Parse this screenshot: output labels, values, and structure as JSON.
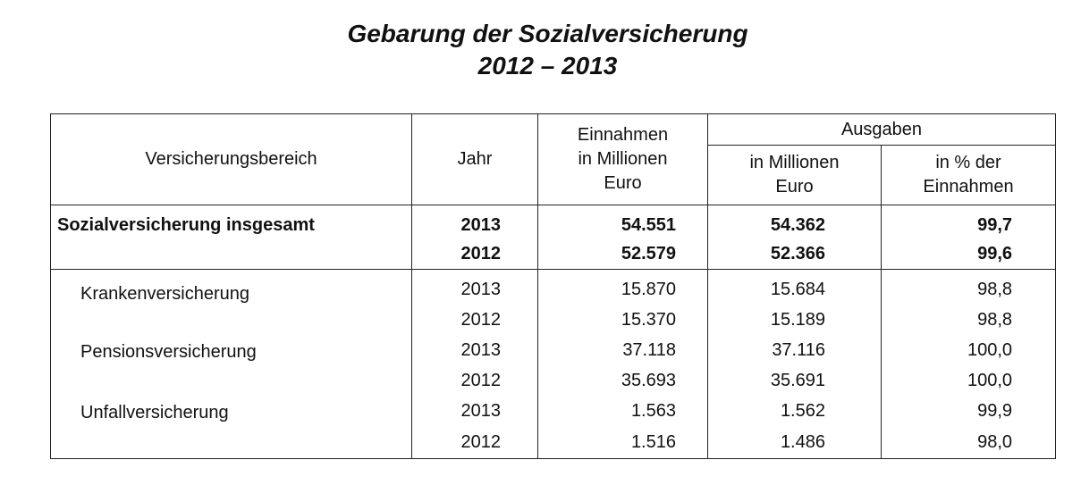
{
  "title": {
    "line1": "Gebarung der Sozialversicherung",
    "line2": "2012 – 2013"
  },
  "table": {
    "headers": {
      "area": "Versicherungsbereich",
      "year": "Jahr",
      "income_l1": "Einnahmen",
      "income_l2": "in Millionen",
      "income_l3": "Euro",
      "expenses": "Ausgaben",
      "exp_mio_l1": "in Millionen",
      "exp_mio_l2": "Euro",
      "exp_pct_l1": "in % der",
      "exp_pct_l2": "Einnahmen"
    },
    "total": {
      "label": "Sozialversicherung insgesamt",
      "rows": [
        {
          "year": "2013",
          "income": "54.551",
          "expenses": "54.362",
          "percent": "99,7"
        },
        {
          "year": "2012",
          "income": "52.579",
          "expenses": "52.366",
          "percent": "99,6"
        }
      ]
    },
    "groups": [
      {
        "label": "Krankenversicherung",
        "rows": [
          {
            "year": "2013",
            "income": "15.870",
            "expenses": "15.684",
            "percent": "98,8"
          },
          {
            "year": "2012",
            "income": "15.370",
            "expenses": "15.189",
            "percent": "98,8"
          }
        ]
      },
      {
        "label": "Pensionsversicherung",
        "rows": [
          {
            "year": "2013",
            "income": "37.118",
            "expenses": "37.116",
            "percent": "100,0"
          },
          {
            "year": "2012",
            "income": "35.693",
            "expenses": "35.691",
            "percent": "100,0"
          }
        ]
      },
      {
        "label": "Unfallversicherung",
        "rows": [
          {
            "year": "2013",
            "income": "1.563",
            "expenses": "1.562",
            "percent": "99,9"
          },
          {
            "year": "2012",
            "income": "1.516",
            "expenses": "1.486",
            "percent": "98,0"
          }
        ]
      }
    ]
  }
}
